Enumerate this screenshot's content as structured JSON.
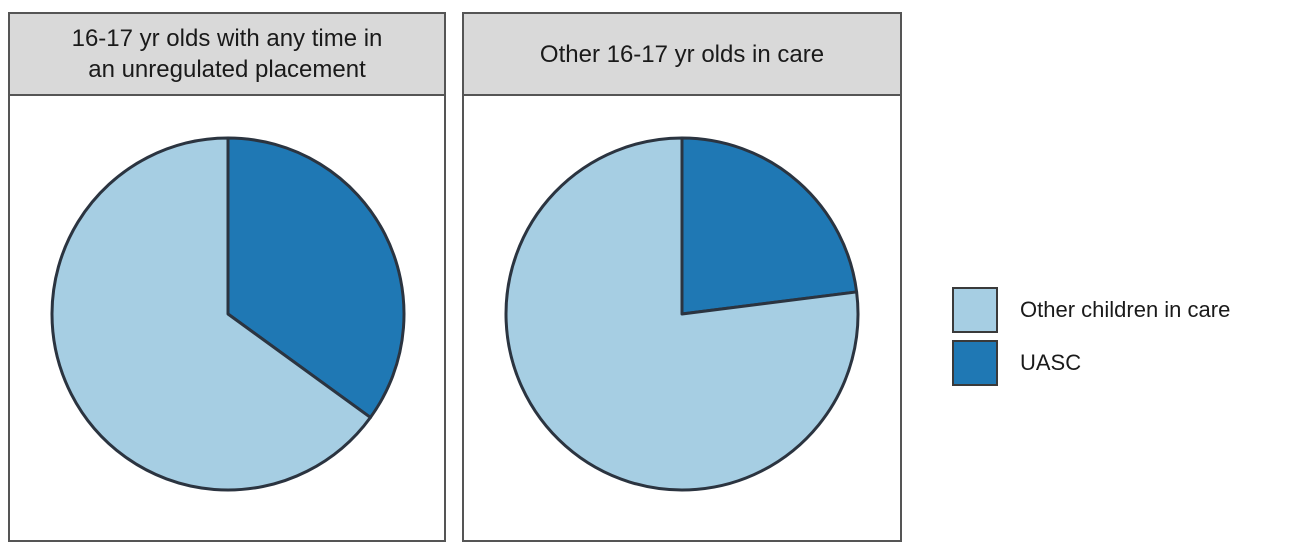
{
  "chart_data": {
    "type": "pie",
    "legend": {
      "placement": "right",
      "items": [
        {
          "name": "Other children in care",
          "color": "#a6cee3"
        },
        {
          "name": "UASC",
          "color": "#1f78b4"
        }
      ]
    },
    "panels": [
      {
        "title": "16-17 yr olds with any time in\nan unregulated placement",
        "slices": [
          {
            "label": "UASC",
            "value": 0.35
          },
          {
            "label": "Other children in care",
            "value": 0.65
          }
        ]
      },
      {
        "title": "Other 16-17 yr olds in care",
        "slices": [
          {
            "label": "UASC",
            "value": 0.23
          },
          {
            "label": "Other children in care",
            "value": 0.77
          }
        ]
      }
    ]
  }
}
